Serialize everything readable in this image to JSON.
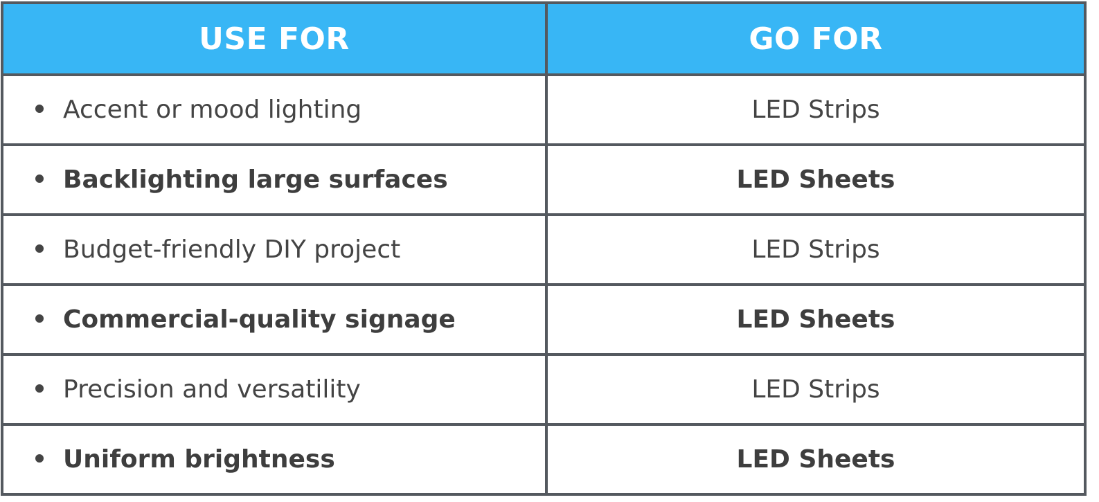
{
  "header": {
    "use_for": "USE FOR",
    "go_for": "GO FOR"
  },
  "rows": [
    {
      "use": "Accent or mood lighting",
      "go": "LED Strips",
      "bold": false
    },
    {
      "use": "Backlighting large surfaces",
      "go": "LED Sheets",
      "bold": true
    },
    {
      "use": "Budget-friendly DIY project",
      "go": "LED Strips",
      "bold": false
    },
    {
      "use": "Commercial-quality signage",
      "go": "LED Sheets",
      "bold": true
    },
    {
      "use": "Precision and versatility",
      "go": "LED Strips",
      "bold": false
    },
    {
      "use": "Uniform brightness",
      "go": "LED Sheets",
      "bold": true
    }
  ],
  "colors": {
    "header_bg": "#38b6f5",
    "header_text": "#ffffff",
    "border": "#54595f",
    "body_text": "#444444"
  }
}
